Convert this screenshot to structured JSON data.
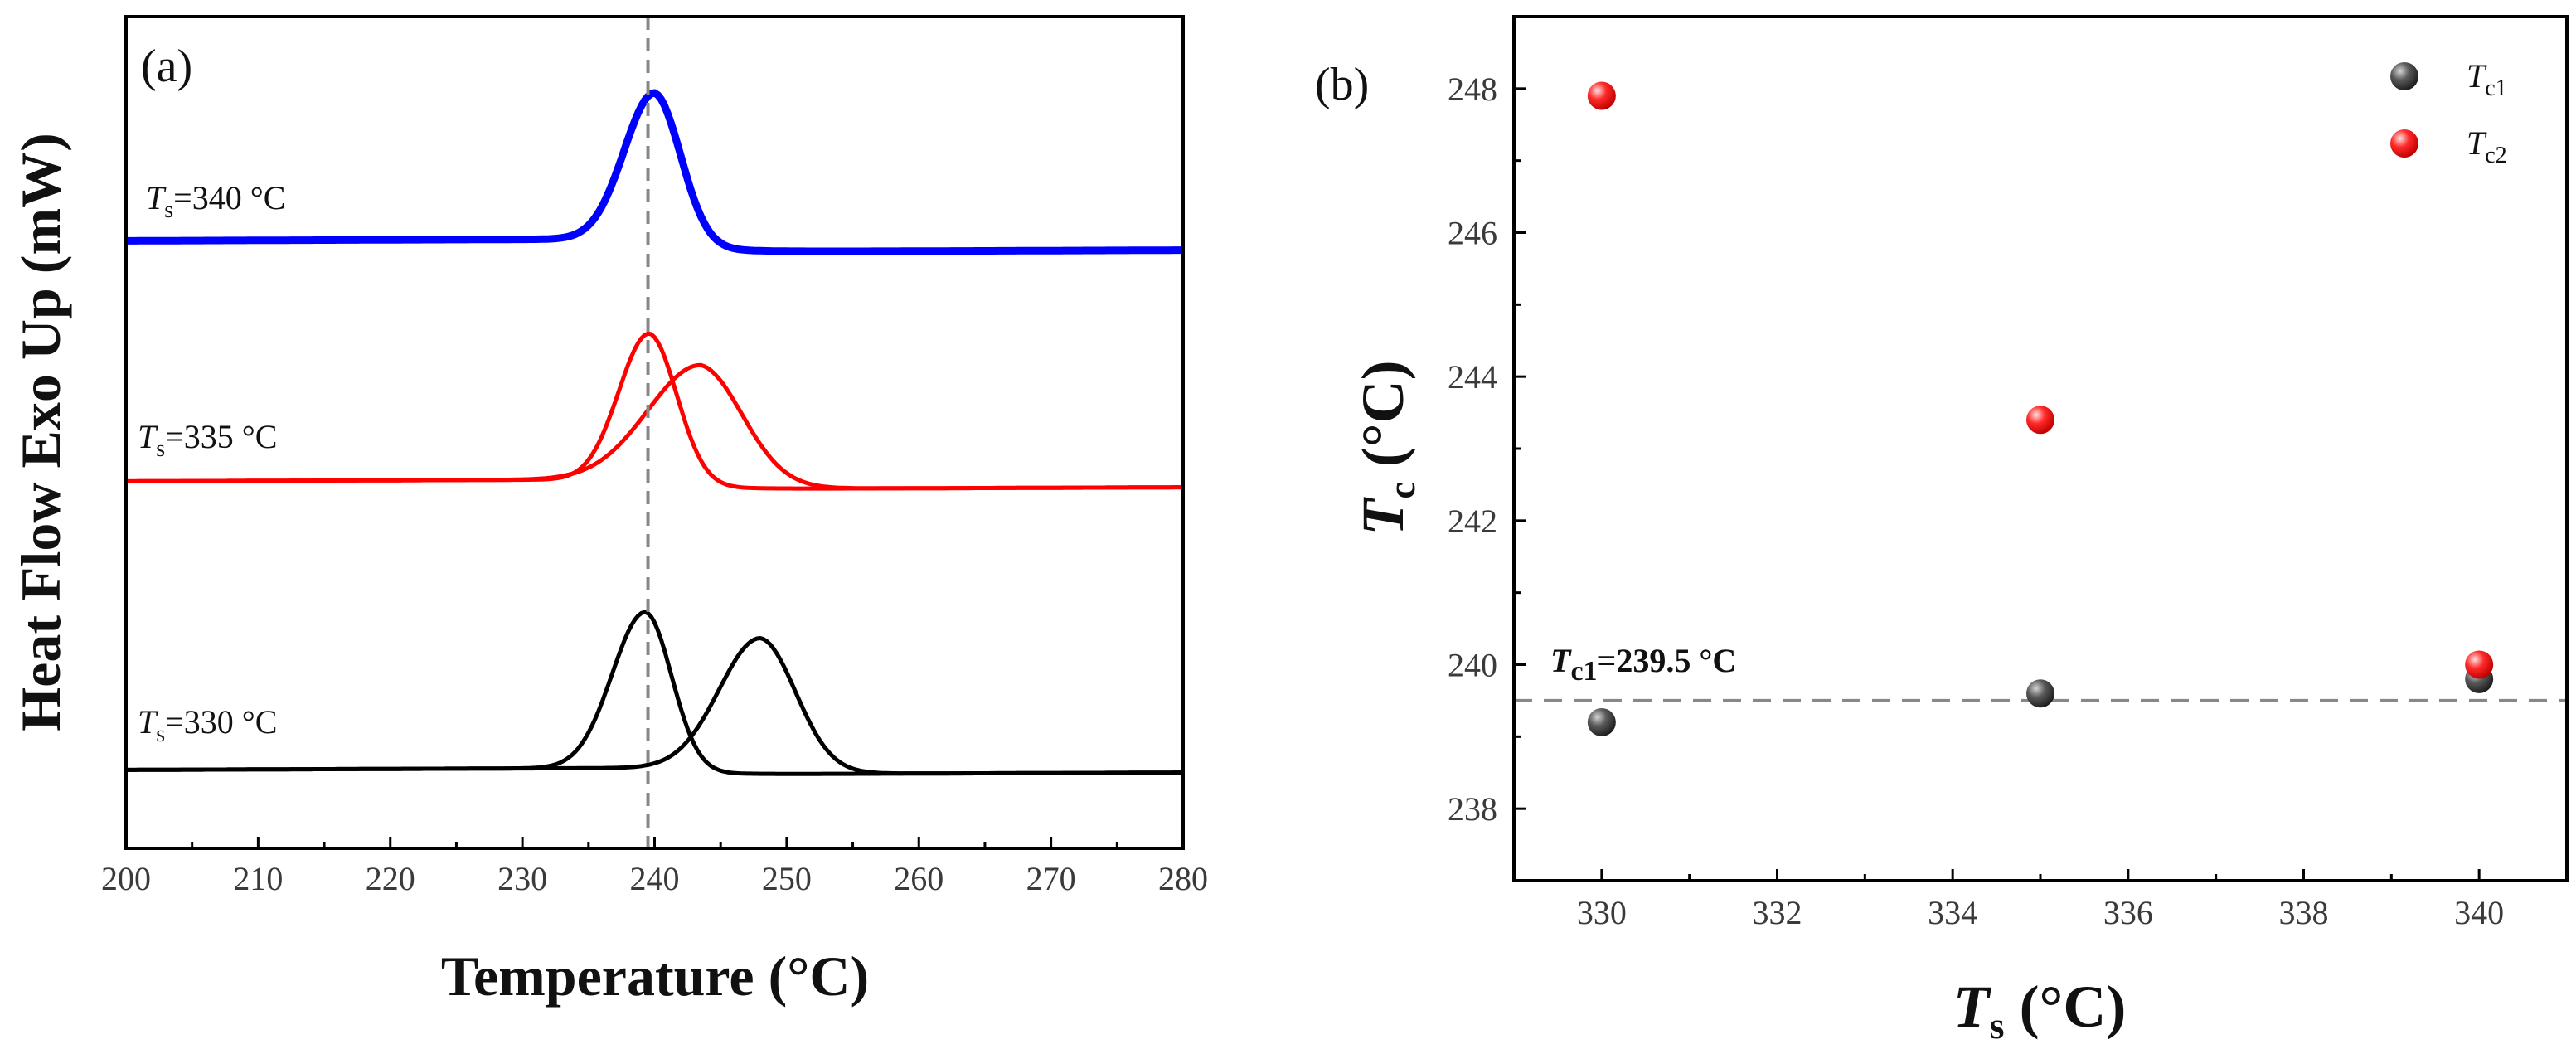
{
  "chart_data": [
    {
      "panel": "(a)",
      "type": "line",
      "xlabel": "Temperature (°C)",
      "ylabel": "Heat Flow Exo Up (mW)",
      "xlim": [
        200,
        280
      ],
      "xticks": [
        "200",
        "210",
        "220",
        "230",
        "240",
        "250",
        "260",
        "270",
        "280"
      ],
      "yticks_shown": false,
      "vline_x": 239.5,
      "series": [
        {
          "name": "Ts=340 °C",
          "label_var": "T",
          "label_sub": "s",
          "label_rest": "=340 °C",
          "color": "#0000ff",
          "curves": [
            {
              "baseline_start": 0.12,
              "slope": 0.00075,
              "peaks": [
                {
                  "center": 240.0,
                  "height": 2.2,
                  "sigma_left": 2.3,
                  "sigma_right": 2.0,
                  "settle": 0.2
                }
              ]
            }
          ]
        },
        {
          "name": "Ts=335 °C",
          "label_var": "T",
          "label_sub": "s",
          "label_rest": "=335 °C",
          "color": "#ff0000",
          "curves": [
            {
              "baseline_start": 0.12,
              "slope": 0.00075,
              "peaks": [
                {
                  "center": 239.6,
                  "height": 2.2,
                  "sigma_left": 2.3,
                  "sigma_right": 2.1,
                  "settle": 0.15
                }
              ]
            },
            {
              "baseline_start": 0.12,
              "slope": 0.00075,
              "peaks": [
                {
                  "center": 243.5,
                  "height": 1.72,
                  "sigma_left": 4.0,
                  "sigma_right": 3.2,
                  "settle": 0.15
                }
              ]
            }
          ]
        },
        {
          "name": "Ts=330 °C",
          "label_var": "T",
          "label_sub": "s",
          "label_rest": "=330 °C",
          "color": "#000000",
          "curves": [
            {
              "baseline_start": 0.12,
              "slope": 0.00075,
              "peaks": [
                {
                  "center": 239.3,
                  "height": 2.35,
                  "sigma_left": 2.5,
                  "sigma_right": 2.0,
                  "settle": 0.1
                }
              ]
            },
            {
              "baseline_start": 0.12,
              "slope": 0.00075,
              "peaks": [
                {
                  "center": 248.0,
                  "height": 1.95,
                  "sigma_left": 3.1,
                  "sigma_right": 2.7,
                  "settle": 0.1
                }
              ]
            }
          ]
        }
      ]
    },
    {
      "panel": "(b)",
      "type": "scatter",
      "xlabel_var": "T",
      "xlabel_sub": "s",
      "xlabel_rest": " (°C)",
      "ylabel_var": "T",
      "ylabel_sub": "c",
      "ylabel_rest": " (°C)",
      "xlim": [
        329,
        341
      ],
      "ylim": [
        237,
        249
      ],
      "xticks": [
        330,
        332,
        334,
        336,
        338,
        340
      ],
      "yticks": [
        238,
        240,
        242,
        244,
        246,
        248
      ],
      "hline": 239.5,
      "annotation_var": "T",
      "annotation_sub": "c1",
      "annotation_rest": "=239.5 °C",
      "series": [
        {
          "name": "Tc1",
          "var": "T",
          "sub": "c1",
          "color": "#3a3a3a",
          "highlight": "#b8b8b8",
          "x": [
            330,
            335,
            340
          ],
          "y": [
            239.2,
            239.6,
            239.8
          ]
        },
        {
          "name": "Tc2",
          "var": "T",
          "sub": "c2",
          "color": "#ff2020",
          "highlight": "#ffd0d0",
          "x": [
            330,
            335,
            340
          ],
          "y": [
            247.9,
            243.4,
            240.0
          ]
        }
      ],
      "legend": "top-right"
    }
  ]
}
